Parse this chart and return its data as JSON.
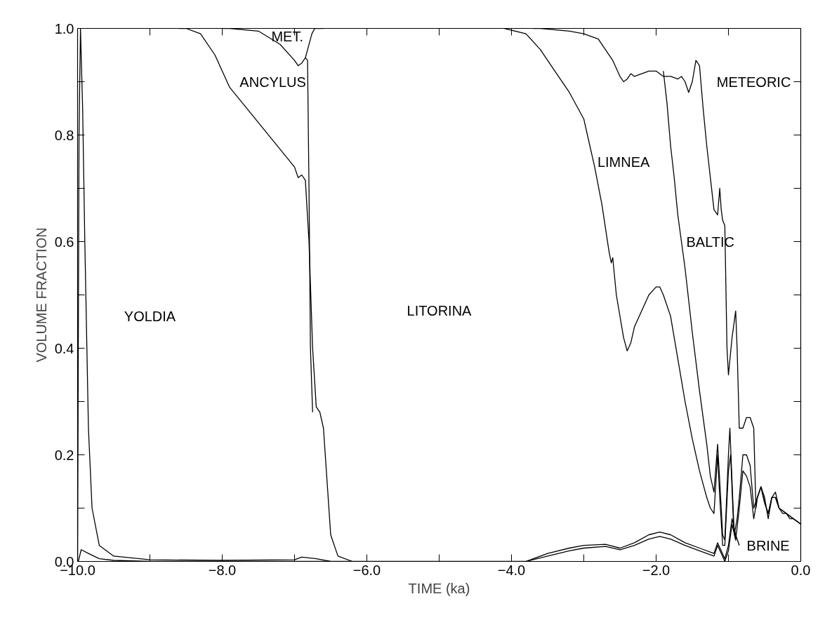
{
  "chart_data": {
    "type": "line",
    "xlabel": "TIME (ka)",
    "ylabel": "VOLUME FRACTION",
    "xlim": [
      -10,
      0
    ],
    "ylim": [
      0,
      1
    ],
    "xticks": [
      {
        "value": -10,
        "label": "−10.0"
      },
      {
        "value": -9,
        "label": null
      },
      {
        "value": -8,
        "label": "−8.0"
      },
      {
        "value": -7,
        "label": null
      },
      {
        "value": -6,
        "label": "−6.0"
      },
      {
        "value": -5,
        "label": null
      },
      {
        "value": -4,
        "label": "−4.0"
      },
      {
        "value": -3,
        "label": null
      },
      {
        "value": -2,
        "label": "−2.0"
      },
      {
        "value": -1,
        "label": null
      },
      {
        "value": 0,
        "label": "0.0"
      }
    ],
    "yticks": [
      {
        "value": 0,
        "label": "0.0"
      },
      {
        "value": 0.1,
        "label": null
      },
      {
        "value": 0.2,
        "label": "0.2"
      },
      {
        "value": 0.3,
        "label": null
      },
      {
        "value": 0.4,
        "label": "0.4"
      },
      {
        "value": 0.5,
        "label": null
      },
      {
        "value": 0.6,
        "label": "0.6"
      },
      {
        "value": 0.7,
        "label": null
      },
      {
        "value": 0.8,
        "label": "0.8"
      },
      {
        "value": 0.9,
        "label": null
      },
      {
        "value": 1,
        "label": "1.0"
      }
    ],
    "grid": false,
    "marker": "none",
    "line_style": "solid",
    "series": [
      {
        "color": "#000000",
        "x": [
          -10,
          -9.98,
          -9.96,
          -9.93,
          -9.9,
          -9.85,
          -9.8,
          -9.7,
          -9.5,
          -9.0,
          -8.0,
          -7.0,
          -6.9,
          -6.7,
          -6.5
        ],
        "values": [
          0,
          0.8,
          1.0,
          0.85,
          0.6,
          0.25,
          0.1,
          0.03,
          0.01,
          0.003,
          0.002,
          0.003,
          0.008,
          0.005,
          0.0
        ]
      },
      {
        "color": "#000000",
        "x": [
          -8.6,
          -8.5,
          -8.3,
          -8.1,
          -7.9,
          -7.6,
          -7.3,
          -7.0,
          -6.95,
          -6.9,
          -6.85,
          -6.8,
          -6.75,
          -6.7,
          -6.65,
          -6.6,
          -6.55,
          -6.5,
          -6.4,
          -6.2
        ],
        "values": [
          1.0,
          1.0,
          0.99,
          0.95,
          0.89,
          0.84,
          0.79,
          0.74,
          0.72,
          0.725,
          0.715,
          0.6,
          0.4,
          0.29,
          0.28,
          0.25,
          0.15,
          0.05,
          0.01,
          0.0
        ]
      },
      {
        "color": "#000000",
        "x": [
          -8.0,
          -7.9,
          -7.5,
          -7.2,
          -7.0,
          -6.95,
          -6.9,
          -6.85,
          -6.82,
          -6.8,
          -6.78,
          -6.75
        ],
        "values": [
          1.0,
          1.0,
          0.995,
          0.97,
          0.94,
          0.93,
          0.935,
          0.945,
          0.94,
          0.7,
          0.4,
          0.28
        ]
      },
      {
        "color": "#000000",
        "x": [
          -6.85,
          -6.8,
          -6.76,
          -6.72,
          -6.6
        ],
        "values": [
          0.945,
          0.97,
          0.99,
          1.0,
          1.0
        ]
      },
      {
        "color": "#000000",
        "x": [
          -3.7,
          -3.6,
          -3.2,
          -3.0,
          -2.8,
          -2.7,
          -2.6,
          -2.5,
          -2.45,
          -2.4,
          -2.35,
          -2.3,
          -2.2,
          -2.1,
          -2.0,
          -1.9,
          -1.8,
          -1.7,
          -1.65,
          -1.6,
          -1.55,
          -1.5,
          -1.45,
          -1.4,
          -1.35,
          -1.3,
          -1.25,
          -1.2,
          -1.15,
          -1.12,
          -1.1,
          -1.08,
          -1.05,
          -1.02,
          -1.0,
          -0.95,
          -0.9,
          -0.88,
          -0.85,
          -0.8,
          -0.75,
          -0.7,
          -0.65,
          -0.62,
          -0.6,
          -0.55,
          -0.5,
          -0.45,
          -0.4,
          -0.35,
          -0.3,
          -0.25,
          -0.2,
          -0.15,
          -0.1,
          -0.05,
          0.0
        ],
        "values": [
          1.0,
          1.0,
          0.995,
          0.99,
          0.98,
          0.96,
          0.94,
          0.91,
          0.9,
          0.905,
          0.915,
          0.91,
          0.915,
          0.92,
          0.92,
          0.91,
          0.91,
          0.905,
          0.91,
          0.9,
          0.88,
          0.9,
          0.94,
          0.93,
          0.85,
          0.78,
          0.72,
          0.66,
          0.65,
          0.7,
          0.66,
          0.64,
          0.63,
          0.4,
          0.35,
          0.42,
          0.47,
          0.4,
          0.25,
          0.25,
          0.27,
          0.27,
          0.25,
          0.1,
          0.12,
          0.14,
          0.12,
          0.08,
          0.12,
          0.13,
          0.1,
          0.09,
          0.09,
          0.08,
          0.08,
          0.075,
          0.07
        ]
      },
      {
        "color": "#000000",
        "x": [
          -1.9,
          -1.85,
          -1.8,
          -1.75,
          -1.7,
          -1.6,
          -1.5,
          -1.4,
          -1.3,
          -1.25,
          -1.2,
          -1.15,
          -1.12,
          -1.08,
          -1.05,
          -1.0,
          -0.98,
          -0.95,
          -0.92,
          -0.88,
          -0.85,
          -0.8,
          -0.75,
          -0.7,
          -0.65,
          -0.6,
          -0.55,
          -0.5,
          -0.45,
          -0.4,
          -0.35,
          -0.3,
          -0.2,
          -0.1,
          0.0
        ],
        "values": [
          0.92,
          0.86,
          0.78,
          0.72,
          0.65,
          0.55,
          0.43,
          0.32,
          0.22,
          0.16,
          0.13,
          0.22,
          0.15,
          0.05,
          0.04,
          0.2,
          0.25,
          0.15,
          0.05,
          0.08,
          0.12,
          0.2,
          0.2,
          0.18,
          0.1,
          0.12,
          0.14,
          0.11,
          0.09,
          0.12,
          0.12,
          0.1,
          0.09,
          0.08,
          0.07
        ]
      },
      {
        "color": "#000000",
        "x": [
          -4.1,
          -3.8,
          -3.6,
          -3.4,
          -3.2,
          -3.0,
          -2.95,
          -2.85,
          -2.75,
          -2.65,
          -2.62,
          -2.6,
          -2.55,
          -2.45,
          -2.4,
          -2.35,
          -2.3,
          -2.2,
          -2.1,
          -2.0,
          -1.95,
          -1.9,
          -1.8,
          -1.7,
          -1.6,
          -1.5,
          -1.4,
          -1.3,
          -1.25,
          -1.2,
          -1.15,
          -1.12,
          -1.08,
          -1.05,
          -1.0,
          -0.97,
          -0.93,
          -0.9,
          -0.85,
          -0.8,
          -0.75,
          -0.7,
          -0.65,
          -0.6,
          -0.55,
          -0.5,
          -0.45,
          -0.4,
          -0.35,
          -0.3,
          -0.2,
          -0.1,
          0.0
        ],
        "values": [
          1.0,
          0.99,
          0.96,
          0.92,
          0.88,
          0.83,
          0.8,
          0.74,
          0.67,
          0.58,
          0.56,
          0.57,
          0.5,
          0.42,
          0.395,
          0.41,
          0.44,
          0.47,
          0.5,
          0.515,
          0.515,
          0.5,
          0.46,
          0.38,
          0.3,
          0.23,
          0.17,
          0.12,
          0.1,
          0.09,
          0.2,
          0.12,
          0.03,
          0.03,
          0.17,
          0.2,
          0.07,
          0.04,
          0.1,
          0.17,
          0.16,
          0.14,
          0.08,
          0.12,
          0.14,
          0.11,
          0.09,
          0.12,
          0.12,
          0.1,
          0.09,
          0.08,
          0.07
        ]
      },
      {
        "color": "#000000",
        "x": [
          -3.8,
          -3.5,
          -3.2,
          -3.0,
          -2.7,
          -2.5,
          -2.3,
          -2.1,
          -1.95,
          -1.8,
          -1.6,
          -1.4,
          -1.2,
          -1.15,
          -1.1,
          -1.05,
          -1.0,
          -0.95,
          -0.9,
          -0.85
        ],
        "values": [
          0.0,
          0.015,
          0.025,
          0.03,
          0.032,
          0.025,
          0.035,
          0.05,
          0.055,
          0.05,
          0.035,
          0.025,
          0.015,
          0.035,
          0.02,
          0.005,
          0.03,
          0.08,
          0.05,
          0.03
        ]
      },
      {
        "color": "#000000",
        "x": [
          -9.99,
          -9.95,
          -9.85,
          -9.7,
          -9.5,
          -9.0,
          -3.8,
          -3.5,
          -3.2,
          -3.0,
          -2.7,
          -2.5,
          -2.3,
          -2.1,
          -1.95,
          -1.8,
          -1.6,
          -1.4,
          -1.2,
          -1.15,
          -1.1,
          -1.05,
          -1.0,
          -0.95,
          -0.9
        ],
        "values": [
          0,
          0.022,
          0.015,
          0.005,
          0.002,
          0.0,
          0.0,
          0.01,
          0.02,
          0.025,
          0.028,
          0.022,
          0.03,
          0.042,
          0.047,
          0.042,
          0.03,
          0.02,
          0.01,
          0.03,
          0.015,
          0.0,
          0.02,
          0.07,
          0.04
        ]
      }
    ],
    "annotations": [
      "YOLDIA",
      "MET.",
      "ANCYLUS",
      "LITORINA",
      "LIMNEA",
      "BALTIC",
      "METEORIC",
      "BRINE"
    ]
  }
}
